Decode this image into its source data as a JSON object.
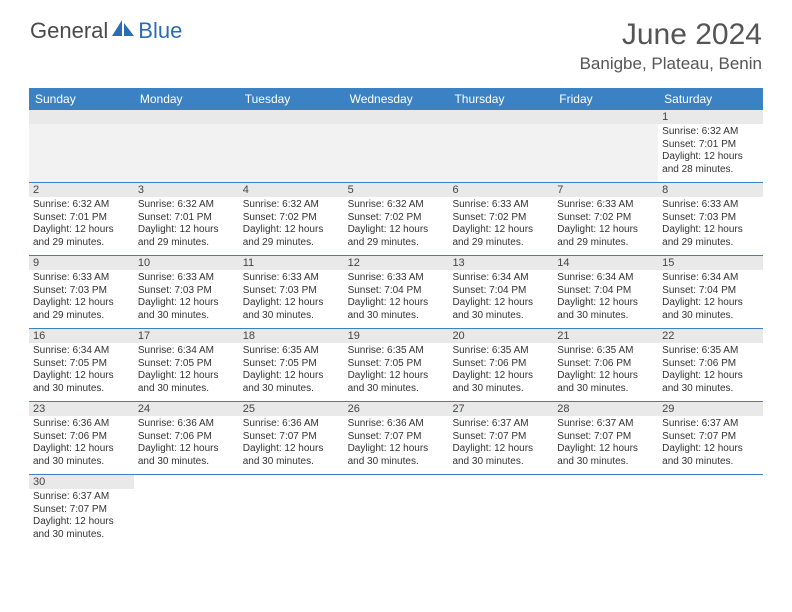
{
  "logo": {
    "text1": "General",
    "text2": "Blue"
  },
  "header": {
    "month": "June 2024",
    "location": "Banigbe, Plateau, Benin"
  },
  "colors": {
    "header_bar": "#3b82c4",
    "daynum_bg": "#e9e9e9",
    "row_border": "#3b82c4",
    "text": "#333333",
    "title_text": "#555555"
  },
  "days": [
    "Sunday",
    "Monday",
    "Tuesday",
    "Wednesday",
    "Thursday",
    "Friday",
    "Saturday"
  ],
  "weeks": [
    {
      "nums": [
        "",
        "",
        "",
        "",
        "",
        "",
        "1"
      ],
      "cells": [
        null,
        null,
        null,
        null,
        null,
        null,
        {
          "sunrise": "6:32 AM",
          "sunset": "7:01 PM",
          "daylight": "12 hours and 28 minutes."
        }
      ]
    },
    {
      "nums": [
        "2",
        "3",
        "4",
        "5",
        "6",
        "7",
        "8"
      ],
      "cells": [
        {
          "sunrise": "6:32 AM",
          "sunset": "7:01 PM",
          "daylight": "12 hours and 29 minutes."
        },
        {
          "sunrise": "6:32 AM",
          "sunset": "7:01 PM",
          "daylight": "12 hours and 29 minutes."
        },
        {
          "sunrise": "6:32 AM",
          "sunset": "7:02 PM",
          "daylight": "12 hours and 29 minutes."
        },
        {
          "sunrise": "6:32 AM",
          "sunset": "7:02 PM",
          "daylight": "12 hours and 29 minutes."
        },
        {
          "sunrise": "6:33 AM",
          "sunset": "7:02 PM",
          "daylight": "12 hours and 29 minutes."
        },
        {
          "sunrise": "6:33 AM",
          "sunset": "7:02 PM",
          "daylight": "12 hours and 29 minutes."
        },
        {
          "sunrise": "6:33 AM",
          "sunset": "7:03 PM",
          "daylight": "12 hours and 29 minutes."
        }
      ]
    },
    {
      "nums": [
        "9",
        "10",
        "11",
        "12",
        "13",
        "14",
        "15"
      ],
      "cells": [
        {
          "sunrise": "6:33 AM",
          "sunset": "7:03 PM",
          "daylight": "12 hours and 29 minutes."
        },
        {
          "sunrise": "6:33 AM",
          "sunset": "7:03 PM",
          "daylight": "12 hours and 30 minutes."
        },
        {
          "sunrise": "6:33 AM",
          "sunset": "7:03 PM",
          "daylight": "12 hours and 30 minutes."
        },
        {
          "sunrise": "6:33 AM",
          "sunset": "7:04 PM",
          "daylight": "12 hours and 30 minutes."
        },
        {
          "sunrise": "6:34 AM",
          "sunset": "7:04 PM",
          "daylight": "12 hours and 30 minutes."
        },
        {
          "sunrise": "6:34 AM",
          "sunset": "7:04 PM",
          "daylight": "12 hours and 30 minutes."
        },
        {
          "sunrise": "6:34 AM",
          "sunset": "7:04 PM",
          "daylight": "12 hours and 30 minutes."
        }
      ]
    },
    {
      "nums": [
        "16",
        "17",
        "18",
        "19",
        "20",
        "21",
        "22"
      ],
      "cells": [
        {
          "sunrise": "6:34 AM",
          "sunset": "7:05 PM",
          "daylight": "12 hours and 30 minutes."
        },
        {
          "sunrise": "6:34 AM",
          "sunset": "7:05 PM",
          "daylight": "12 hours and 30 minutes."
        },
        {
          "sunrise": "6:35 AM",
          "sunset": "7:05 PM",
          "daylight": "12 hours and 30 minutes."
        },
        {
          "sunrise": "6:35 AM",
          "sunset": "7:05 PM",
          "daylight": "12 hours and 30 minutes."
        },
        {
          "sunrise": "6:35 AM",
          "sunset": "7:06 PM",
          "daylight": "12 hours and 30 minutes."
        },
        {
          "sunrise": "6:35 AM",
          "sunset": "7:06 PM",
          "daylight": "12 hours and 30 minutes."
        },
        {
          "sunrise": "6:35 AM",
          "sunset": "7:06 PM",
          "daylight": "12 hours and 30 minutes."
        }
      ]
    },
    {
      "nums": [
        "23",
        "24",
        "25",
        "26",
        "27",
        "28",
        "29"
      ],
      "cells": [
        {
          "sunrise": "6:36 AM",
          "sunset": "7:06 PM",
          "daylight": "12 hours and 30 minutes."
        },
        {
          "sunrise": "6:36 AM",
          "sunset": "7:06 PM",
          "daylight": "12 hours and 30 minutes."
        },
        {
          "sunrise": "6:36 AM",
          "sunset": "7:07 PM",
          "daylight": "12 hours and 30 minutes."
        },
        {
          "sunrise": "6:36 AM",
          "sunset": "7:07 PM",
          "daylight": "12 hours and 30 minutes."
        },
        {
          "sunrise": "6:37 AM",
          "sunset": "7:07 PM",
          "daylight": "12 hours and 30 minutes."
        },
        {
          "sunrise": "6:37 AM",
          "sunset": "7:07 PM",
          "daylight": "12 hours and 30 minutes."
        },
        {
          "sunrise": "6:37 AM",
          "sunset": "7:07 PM",
          "daylight": "12 hours and 30 minutes."
        }
      ]
    },
    {
      "nums": [
        "30",
        "",
        "",
        "",
        "",
        "",
        ""
      ],
      "cells": [
        {
          "sunrise": "6:37 AM",
          "sunset": "7:07 PM",
          "daylight": "12 hours and 30 minutes."
        },
        null,
        null,
        null,
        null,
        null,
        null
      ]
    }
  ],
  "labels": {
    "sunrise": "Sunrise:",
    "sunset": "Sunset:",
    "daylight": "Daylight:"
  }
}
